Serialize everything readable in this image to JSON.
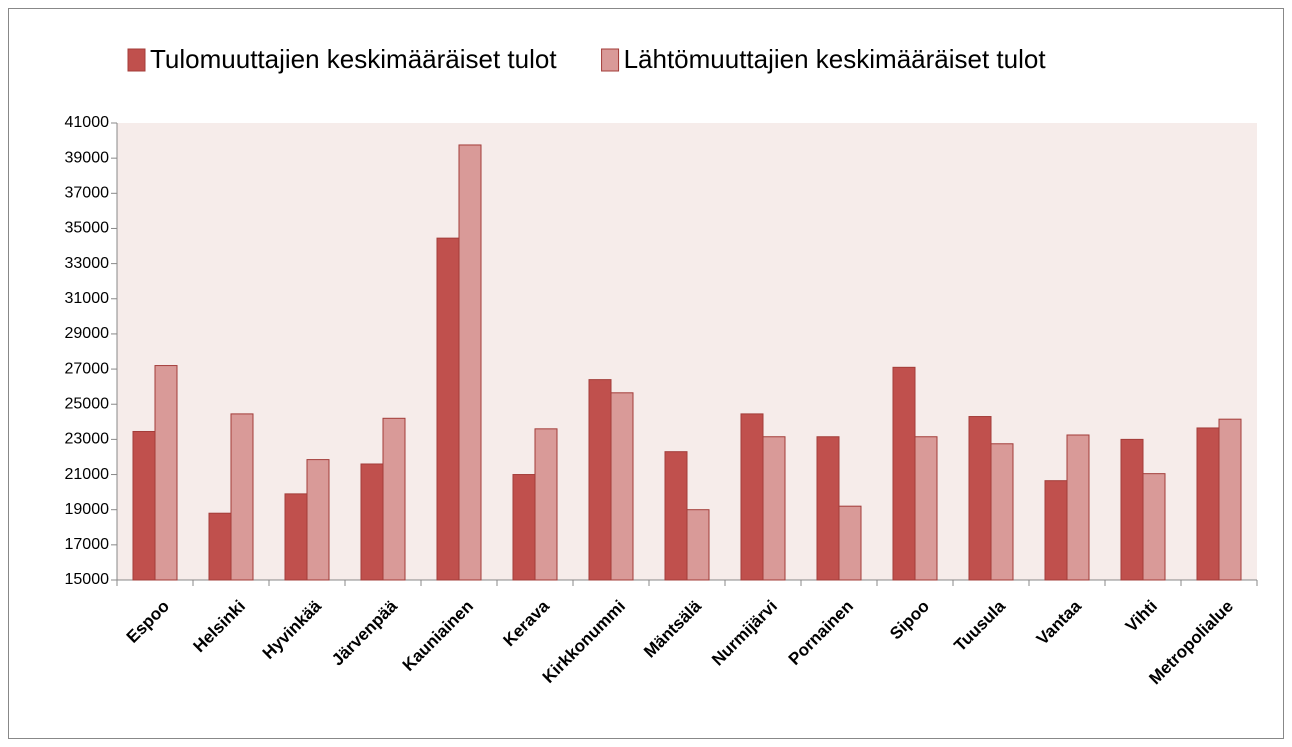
{
  "chart_data": {
    "type": "bar",
    "categories": [
      "Espoo",
      "Helsinki",
      "Hyvinkää",
      "Järvenpää",
      "Kauniainen",
      "Kerava",
      "Kirkkonummi",
      "Mäntsälä",
      "Nurmijärvi",
      "Pornainen",
      "Sipoo",
      "Tuusula",
      "Vantaa",
      "Vihti",
      "Metropolialue"
    ],
    "series": [
      {
        "name": "Tulomuuttajien keskimääräiset tulot",
        "color": "#c0504d",
        "values": [
          23450,
          18800,
          19900,
          21600,
          34450,
          21000,
          26400,
          22300,
          24450,
          23150,
          27100,
          24300,
          20650,
          23000,
          23650
        ]
      },
      {
        "name": "Lähtömuuttajien keskimääräiset tulot",
        "color": "#d99a98",
        "values": [
          27200,
          24450,
          21850,
          24200,
          39750,
          23600,
          25650,
          19000,
          23150,
          19200,
          23150,
          22750,
          23250,
          21050,
          24150
        ]
      }
    ],
    "ylim": [
      15000,
      41000
    ],
    "yticks": [
      15000,
      17000,
      19000,
      21000,
      23000,
      25000,
      27000,
      29000,
      31000,
      33000,
      35000,
      37000,
      39000,
      41000
    ],
    "grid": false,
    "legend": "top"
  }
}
